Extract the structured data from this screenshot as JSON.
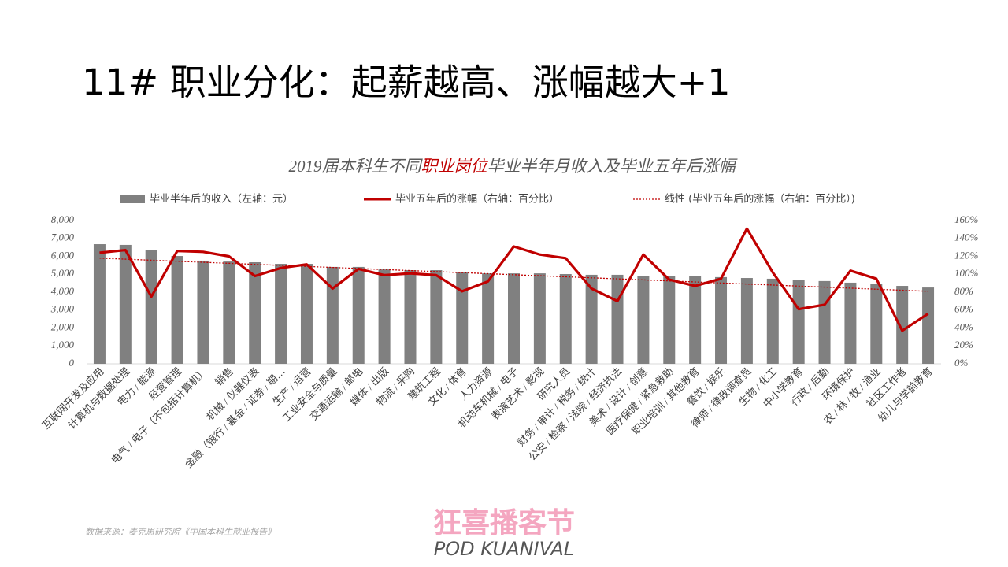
{
  "slide_title": "11# 职业分化：起薪越高、涨幅越大+1",
  "source": "数据来源：麦克思研究院《中国本科生就业报告》",
  "logo": {
    "main": "狂喜播客节",
    "sub": "POD KUANIVAL"
  },
  "chart_data": {
    "type": "bar-line",
    "title_parts": [
      {
        "text": "2019届本科生不同",
        "color": "#595959"
      },
      {
        "text": "职业岗位",
        "color": "#c00000"
      },
      {
        "text": "毕业半年月收入及毕业五年后涨幅",
        "color": "#595959"
      }
    ],
    "categories": [
      "互联网开发及应用",
      "计算机与数据处理",
      "电力 / 能源",
      "经营管理",
      "电气 / 电子（不包括计算机）",
      "销售",
      "机械 / 仪器仪表",
      "金融（银行 / 基金 / 证券 / 期…",
      "生产 / 运营",
      "工业安全与质量",
      "交通运输 / 邮电",
      "媒体 / 出版",
      "物流 / 采购",
      "建筑工程",
      "文化 / 体育",
      "人力资源",
      "机动车机械 / 电子",
      "表演艺术 / 影视",
      "研究人员",
      "财务 / 审计 / 税务 / 统计",
      "公安 / 检察 / 法院 / 经济执法",
      "美术 / 设计 / 创意",
      "医疗保健 / 紧急救助",
      "职业培训 / 其他教育",
      "餐饮 / 娱乐",
      "律师 / 律政调查员",
      "生物 / 化工",
      "中小学教育",
      "行政 / 后勤",
      "环境保护",
      "农 / 林 / 牧 / 渔业",
      "社区工作者",
      "幼儿与学前教育"
    ],
    "series": [
      {
        "name": "毕业半年后的收入（左轴：元）",
        "color": "#808080",
        "kind": "bar",
        "values": [
          6680,
          6640,
          6330,
          6020,
          5760,
          5710,
          5670,
          5580,
          5580,
          5410,
          5410,
          5270,
          5230,
          5230,
          5140,
          5050,
          5050,
          5050,
          5010,
          4970,
          4970,
          4920,
          4920,
          4880,
          4840,
          4790,
          4750,
          4700,
          4620,
          4530,
          4440,
          4350,
          4260
        ]
      },
      {
        "name": "毕业五年后的涨幅（右轴：百分比）",
        "color": "#c00000",
        "kind": "line",
        "axis": "y2",
        "values": [
          124,
          127,
          75,
          126,
          125,
          120,
          98,
          107,
          111,
          84,
          106,
          99,
          101,
          99,
          81,
          92,
          131,
          122,
          118,
          84,
          70,
          122,
          94,
          87,
          95,
          151,
          102,
          61,
          66,
          104,
          95,
          37,
          56
        ]
      }
    ],
    "trendline": {
      "name": "线性 (毕业五年后的涨幅（右轴：百分比）)",
      "color": "#c00000",
      "axis": "y2",
      "values": [
        118,
        81
      ]
    },
    "ylim": [
      0,
      8000
    ],
    "yticks": [
      0,
      {
        "value": 1000,
        "label": "1,000"
      },
      {
        "value": 2000,
        "label": "2,000"
      },
      {
        "value": 3000,
        "label": "3,000"
      },
      {
        "value": 4000,
        "label": "4,000"
      },
      {
        "value": 5000,
        "label": "5,000"
      },
      {
        "value": 6000,
        "label": "6,000"
      },
      {
        "value": 7000,
        "label": "7,000"
      },
      {
        "value": 8000,
        "label": "8,000"
      }
    ],
    "y2lim": [
      0,
      160
    ],
    "y2ticks": [
      {
        "value": 0,
        "label": "0%"
      },
      {
        "value": 20,
        "label": "20%"
      },
      {
        "value": 40,
        "label": "40%"
      },
      {
        "value": 60,
        "label": "60%"
      },
      {
        "value": 80,
        "label": "80%"
      },
      {
        "value": 100,
        "label": "100%"
      },
      {
        "value": 120,
        "label": "120%"
      },
      {
        "value": 140,
        "label": "140%"
      },
      {
        "value": 160,
        "label": "160%"
      }
    ]
  }
}
